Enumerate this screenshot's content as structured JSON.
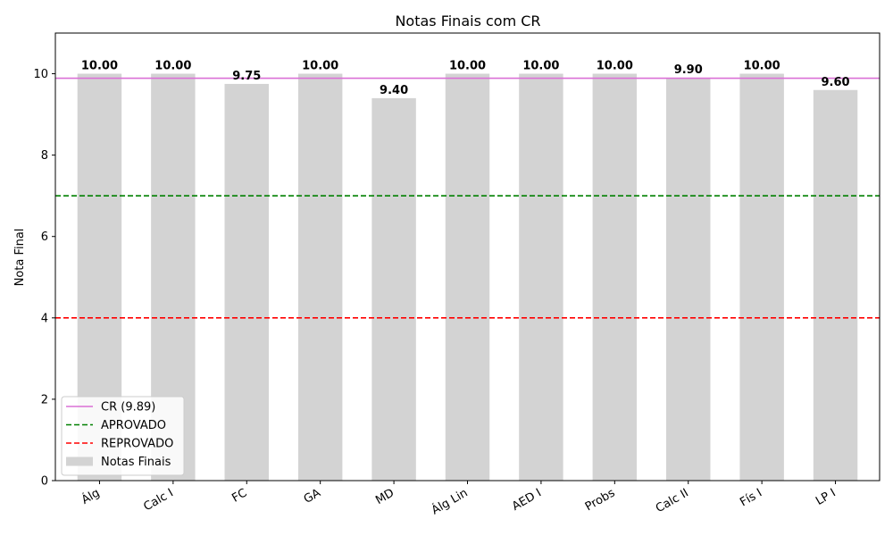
{
  "chart_data": {
    "type": "bar",
    "title": "Notas Finais com CR",
    "xlabel": "",
    "ylabel": "Nota Final",
    "categories": [
      "Álg",
      "Calc I",
      "FC",
      "GA",
      "MD",
      "Álg Lin",
      "AED I",
      "Probs",
      "Calc II",
      "Fís I",
      "LP I"
    ],
    "series": [
      {
        "name": "Notas Finais",
        "color": "#d3d3d3",
        "values": [
          10.0,
          10.0,
          9.75,
          10.0,
          9.4,
          10.0,
          10.0,
          10.0,
          9.9,
          10.0,
          9.6
        ]
      }
    ],
    "value_labels": [
      "10.00",
      "10.00",
      "9.75",
      "10.00",
      "9.40",
      "10.00",
      "10.00",
      "10.00",
      "9.90",
      "10.00",
      "9.60"
    ],
    "reference_lines": [
      {
        "name": "CR (9.89)",
        "value": 9.89,
        "color": "#da70d6",
        "style": "solid"
      },
      {
        "name": "APROVADO",
        "value": 7,
        "color": "#008000",
        "style": "dashed"
      },
      {
        "name": "REPROVADO",
        "value": 4,
        "color": "#ff0000",
        "style": "dashed"
      }
    ],
    "ylim": [
      0,
      11
    ],
    "yticks": [
      0,
      2,
      4,
      6,
      8,
      10
    ],
    "grid": false,
    "legend_position": "lower-left"
  }
}
